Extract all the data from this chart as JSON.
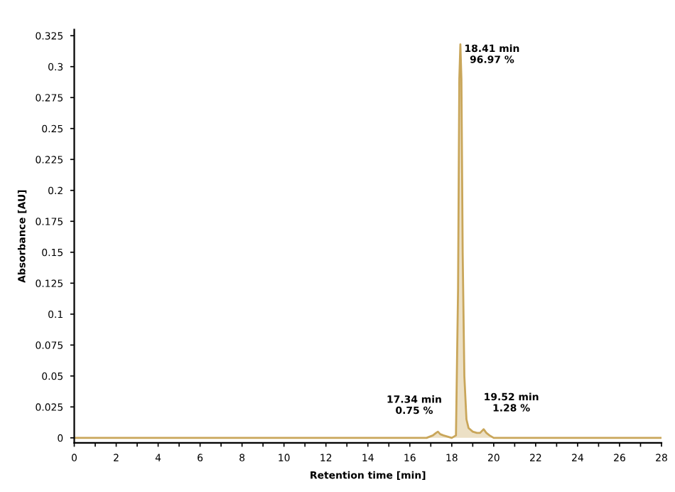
{
  "chart_data": {
    "type": "area",
    "xlabel": "Retention time [min]",
    "ylabel": "Absorbance [AU]",
    "series": [
      {
        "color": "#c9a65a",
        "x": [
          0,
          5,
          10,
          15,
          16.8,
          17.1,
          17.25,
          17.34,
          17.45,
          17.6,
          17.8,
          18.0,
          18.2,
          18.3,
          18.36,
          18.41,
          18.46,
          18.52,
          18.6,
          18.7,
          18.8,
          19.0,
          19.2,
          19.35,
          19.52,
          19.65,
          19.8,
          20.0,
          22,
          25,
          28
        ],
        "values": [
          0,
          0,
          0,
          0,
          0,
          0.002,
          0.004,
          0.005,
          0.003,
          0.002,
          0.001,
          0,
          0.002,
          0.12,
          0.29,
          0.318,
          0.29,
          0.15,
          0.05,
          0.015,
          0.008,
          0.005,
          0.004,
          0.004,
          0.007,
          0.004,
          0.002,
          0,
          0,
          0,
          0
        ]
      }
    ],
    "annotations": [
      {
        "text": "18.41 min\n96.97 %",
        "x": 18.41,
        "y": 0.318
      },
      {
        "text": "17.34 min\n0.75 %",
        "x": 17.34,
        "y": 0.005
      },
      {
        "text": "19.52 min\n1.28 %",
        "x": 19.52,
        "y": 0.007
      }
    ],
    "xlim": [
      0,
      28
    ],
    "ylim": [
      -0.004,
      0.33
    ],
    "xticks": [
      0,
      {
        "value": 1,
        "label": null
      },
      2,
      {
        "value": 3,
        "label": null
      },
      4,
      {
        "value": 5,
        "label": null
      },
      6,
      {
        "value": 7,
        "label": null
      },
      8,
      {
        "value": 9,
        "label": null
      },
      10,
      {
        "value": 11,
        "label": null
      },
      12,
      {
        "value": 13,
        "label": null
      },
      14,
      {
        "value": 15,
        "label": null
      },
      16,
      {
        "value": 17,
        "label": null
      },
      18,
      {
        "value": 19,
        "label": null
      },
      20,
      {
        "value": 21,
        "label": null
      },
      22,
      {
        "value": 23,
        "label": null
      },
      24,
      {
        "value": 25,
        "label": null
      },
      26,
      {
        "value": 27,
        "label": null
      },
      28
    ],
    "yticks": [
      0,
      0.025,
      0.05,
      0.075,
      0.1,
      0.125,
      0.15,
      0.175,
      0.2,
      0.225,
      0.25,
      0.275,
      0.3,
      0.325
    ],
    "grid": false,
    "legend": false
  }
}
